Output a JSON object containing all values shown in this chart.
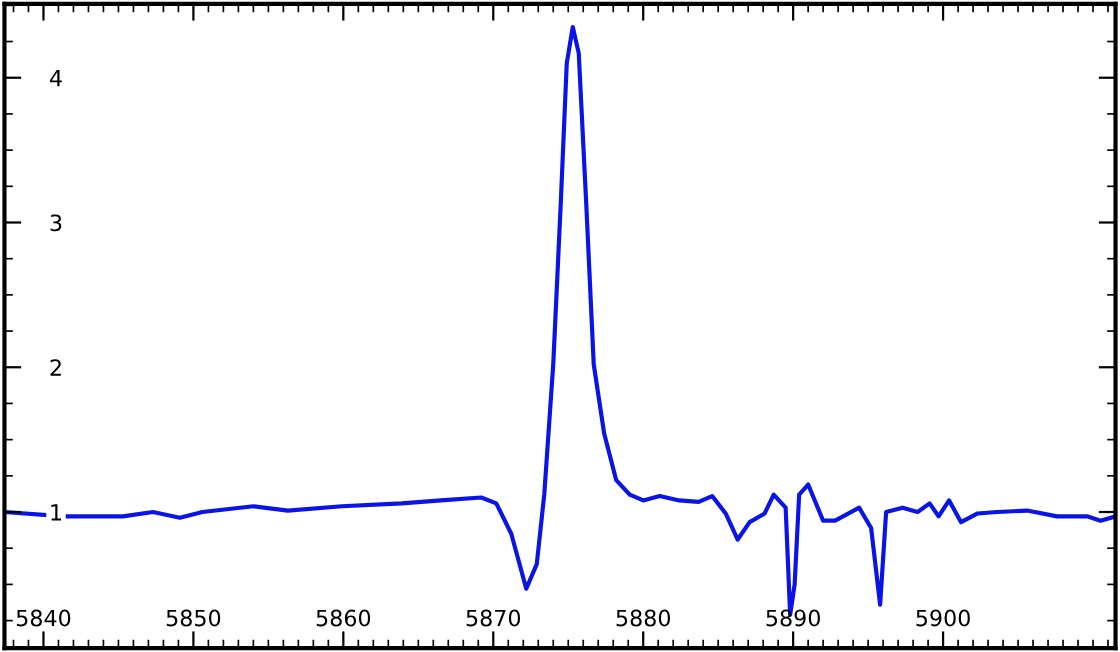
{
  "chart_data": {
    "type": "line",
    "x": [
      5837.4,
      5841.4,
      5845.3,
      5847.3,
      5849.1,
      5850.6,
      5854.0,
      5856.3,
      5859.9,
      5863.9,
      5866.5,
      5869.2,
      5870.2,
      5871.2,
      5872.2,
      5872.9,
      5873.4,
      5874.0,
      5874.5,
      5874.9,
      5875.3,
      5875.7,
      5876.2,
      5876.7,
      5877.4,
      5878.2,
      5879.1,
      5880.0,
      5881.1,
      5882.4,
      5883.7,
      5884.6,
      5885.5,
      5886.3,
      5887.1,
      5888.1,
      5888.7,
      5889.5,
      5889.8,
      5890.1,
      5890.4,
      5891.0,
      5892.0,
      5892.8,
      5894.4,
      5895.2,
      5895.8,
      5896.2,
      5897.3,
      5898.3,
      5899.1,
      5899.7,
      5900.4,
      5901.2,
      5902.3,
      5903.6,
      5905.6,
      5907.6,
      5909.6,
      5910.5,
      5911.5
    ],
    "series": [
      {
        "color": "#0a14e6",
        "values": [
          1.0,
          0.97,
          0.97,
          1.0,
          0.96,
          1.0,
          1.04,
          1.01,
          1.04,
          1.06,
          1.08,
          1.1,
          1.06,
          0.85,
          0.47,
          0.64,
          1.12,
          2.02,
          3.13,
          4.1,
          4.35,
          4.17,
          3.13,
          2.02,
          1.54,
          1.22,
          1.12,
          1.08,
          1.11,
          1.08,
          1.07,
          1.11,
          0.99,
          0.81,
          0.93,
          0.99,
          1.12,
          1.03,
          0.29,
          0.5,
          1.12,
          1.19,
          0.94,
          0.94,
          1.03,
          0.89,
          0.36,
          1.0,
          1.03,
          1.0,
          1.06,
          0.97,
          1.08,
          0.93,
          0.99,
          1.0,
          1.01,
          0.97,
          0.97,
          0.94,
          0.97
        ]
      }
    ],
    "xlim": [
      5837.4,
      5911.5
    ],
    "ylim": [
      0.06,
      4.51
    ],
    "xticks": [
      5840,
      5850,
      5860,
      5870,
      5880,
      5890,
      5900
    ],
    "yticks": [
      1,
      2,
      3,
      4
    ],
    "grid": false,
    "marker": "none",
    "line_style": "solid"
  }
}
